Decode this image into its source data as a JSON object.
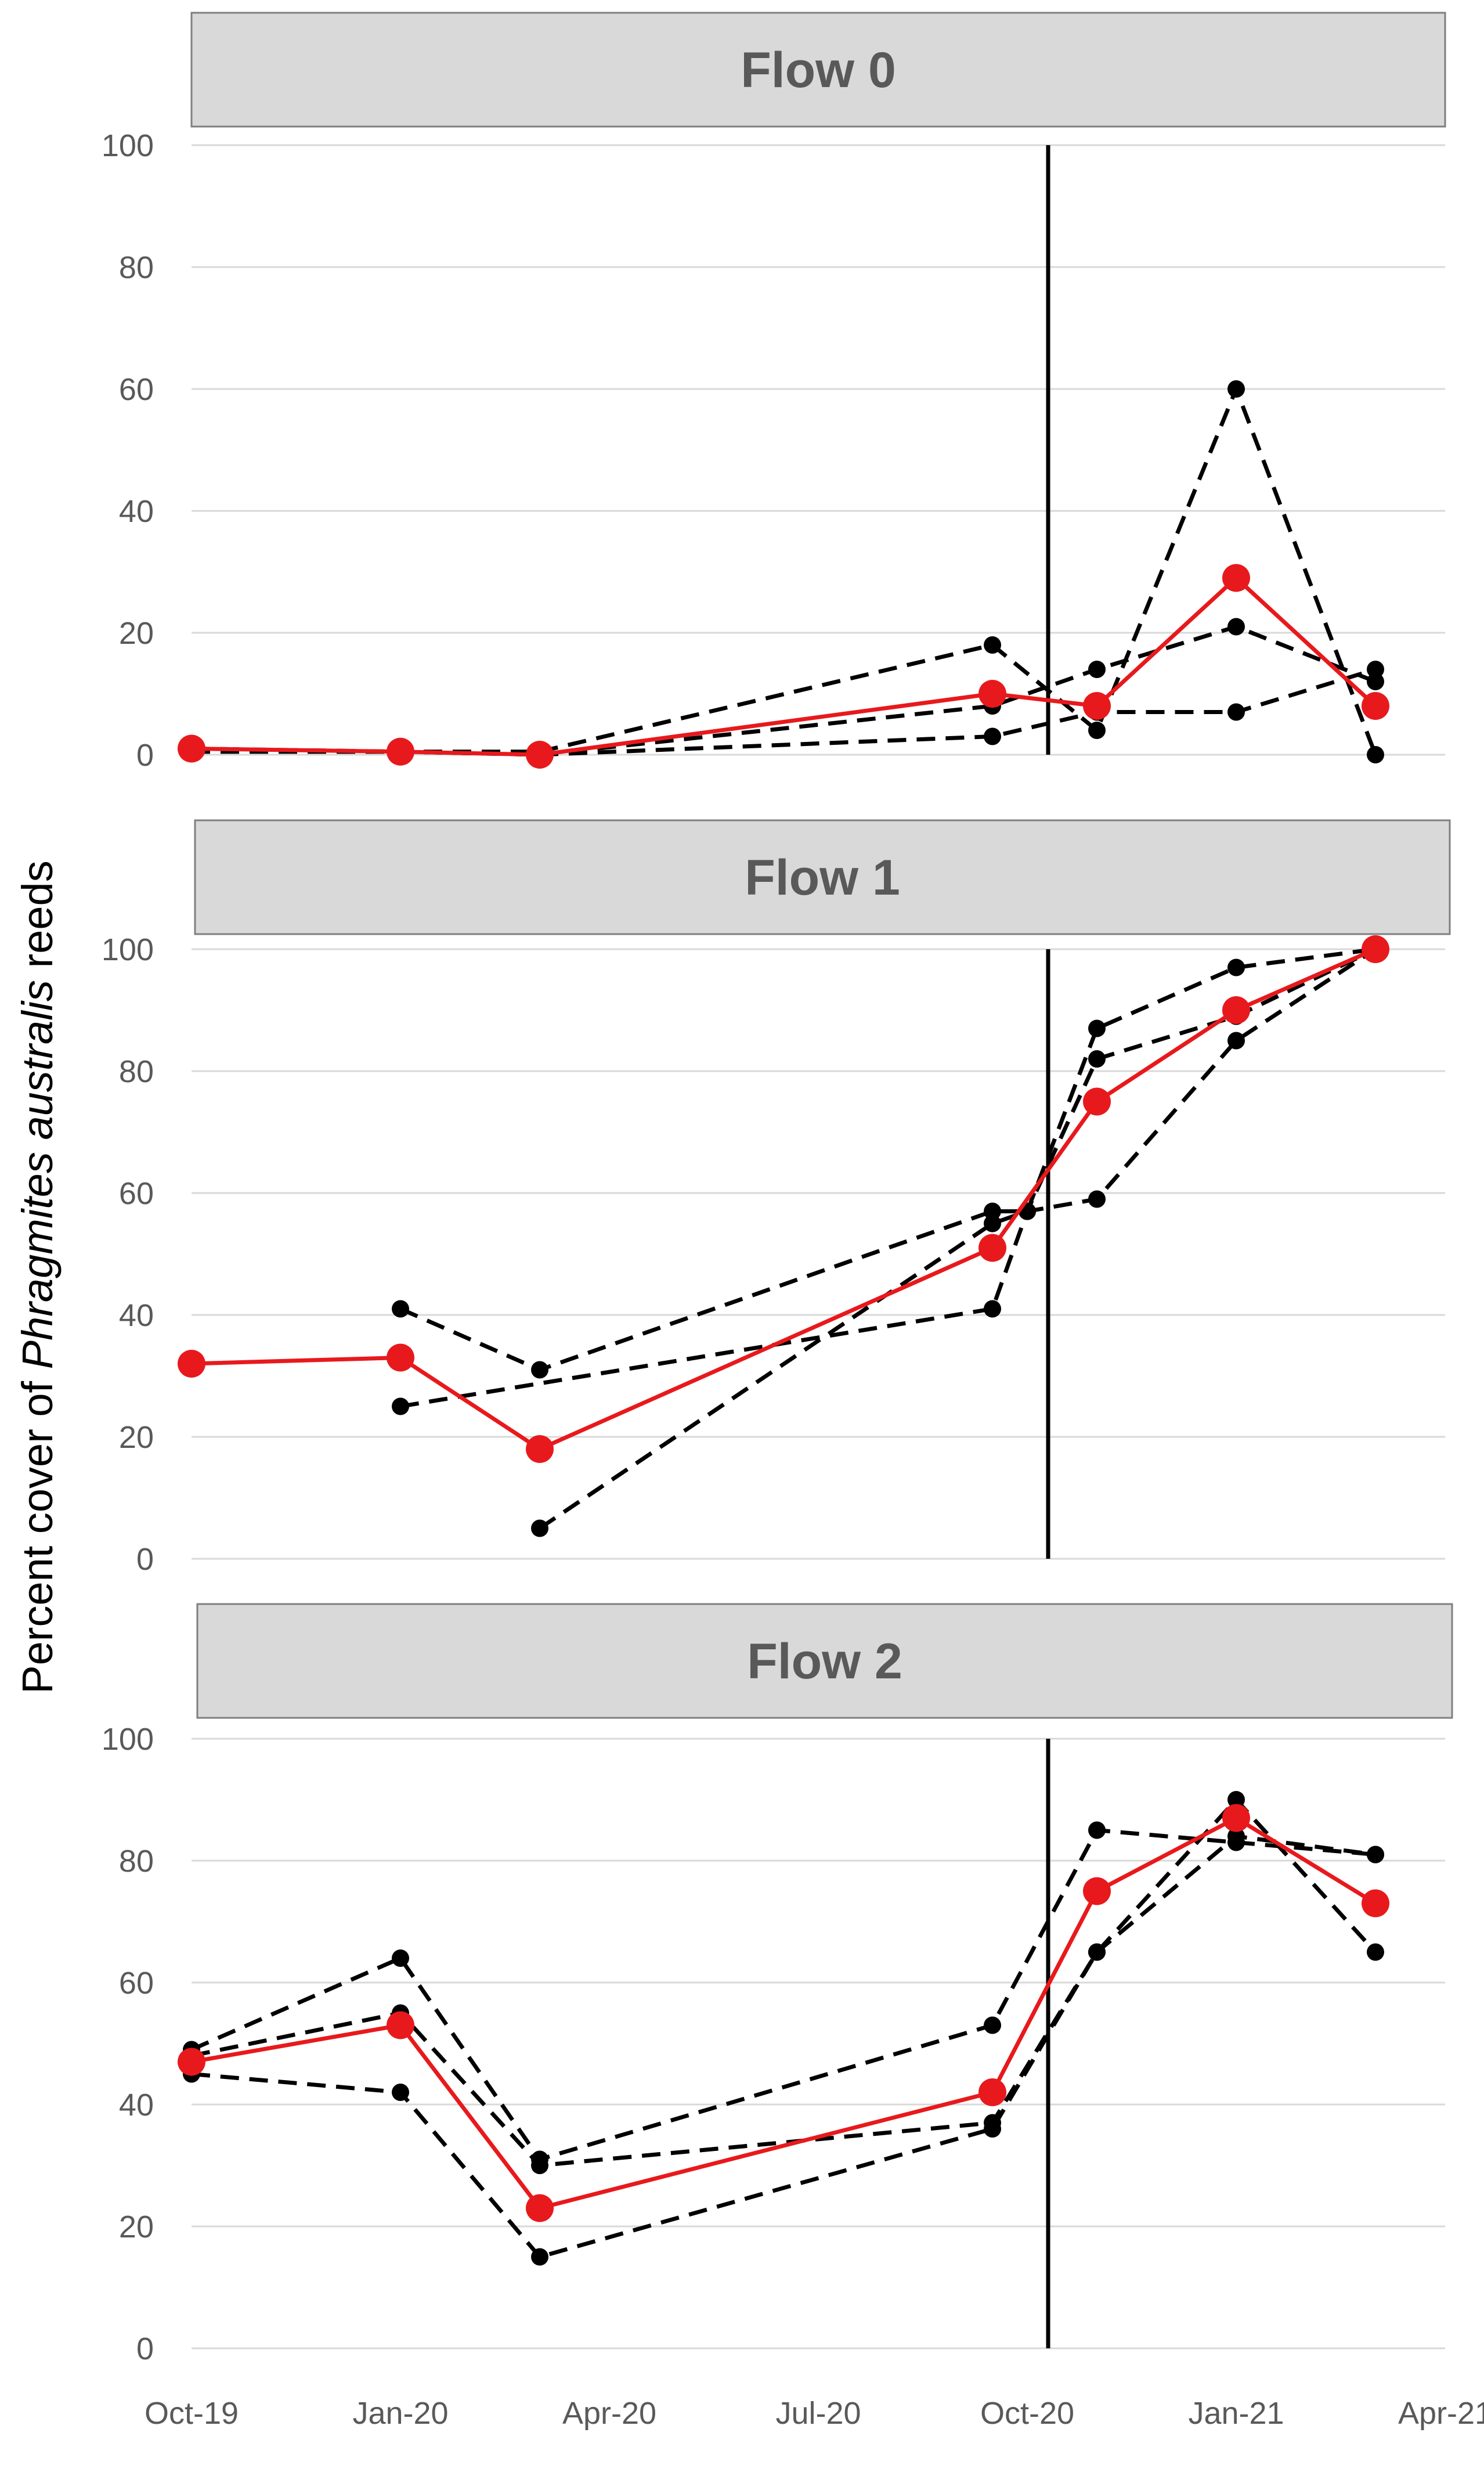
{
  "chart_data": {
    "type": "line",
    "ylabel": {
      "prefix": "Percent cover of ",
      "italic": "Phragmites australis",
      "suffix": " reeds"
    },
    "x_ticks": [
      "Oct-19",
      "Jan-20",
      "Apr-20",
      "Jul-20",
      "Oct-20",
      "Jan-21",
      "Apr-21"
    ],
    "x_range_months": [
      0,
      18
    ],
    "y_range": [
      0,
      100
    ],
    "y_ticks": [
      0,
      20,
      40,
      60,
      80,
      100
    ],
    "grid": true,
    "event_line_month": 12.3,
    "colors": {
      "mean": "#e8191c",
      "replicate": "#000000",
      "grid": "#d9d9d9",
      "title_box": "#d9d9d9"
    },
    "panels": [
      {
        "title": "Flow 0",
        "series": [
          {
            "name": "mean",
            "months": [
              0,
              3,
              5,
              11.5,
              13,
              15,
              17
            ],
            "values": [
              1,
              0.5,
              0,
              10,
              8,
              29,
              8
            ]
          },
          {
            "name": "replicate-1",
            "months": [
              0,
              3,
              5,
              11.5,
              13,
              15,
              17
            ],
            "values": [
              0.5,
              0.5,
              0.5,
              18,
              4,
              60,
              0
            ]
          },
          {
            "name": "replicate-2",
            "months": [
              0,
              3,
              5,
              11.5,
              13,
              15,
              17
            ],
            "values": [
              1,
              0.5,
              0,
              8,
              14,
              21,
              12
            ]
          },
          {
            "name": "replicate-3",
            "months": [
              0,
              3,
              5,
              11.5,
              13,
              15,
              17
            ],
            "values": [
              0.5,
              0.5,
              0,
              3,
              7,
              7,
              14
            ]
          }
        ]
      },
      {
        "title": "Flow 1",
        "series": [
          {
            "name": "mean",
            "months": [
              0,
              3,
              5,
              11.5,
              13,
              15,
              17
            ],
            "values": [
              32,
              33,
              18,
              51,
              75,
              90,
              100
            ]
          },
          {
            "name": "replicate-1",
            "months": [
              3,
              5,
              11.5,
              12,
              13,
              15,
              17
            ],
            "values": [
              41,
              31,
              57,
              57,
              87,
              97,
              100
            ]
          },
          {
            "name": "replicate-2",
            "months": [
              5,
              11.5,
              12,
              13,
              15,
              17
            ],
            "values": [
              5,
              55,
              57,
              59,
              85,
              100
            ]
          },
          {
            "name": "replicate-3",
            "months": [
              3,
              11.5,
              12,
              13,
              15,
              17
            ],
            "values": [
              25,
              41,
              57,
              82,
              89,
              100
            ]
          }
        ]
      },
      {
        "title": "Flow 2",
        "series": [
          {
            "name": "mean",
            "months": [
              0,
              3,
              5,
              11.5,
              13,
              15,
              17
            ],
            "values": [
              47,
              53,
              23,
              42,
              75,
              87,
              73
            ]
          },
          {
            "name": "replicate-1",
            "months": [
              0,
              3,
              5,
              11.5,
              13,
              15,
              17
            ],
            "values": [
              49,
              64,
              31,
              53,
              85,
              83,
              81
            ]
          },
          {
            "name": "replicate-2",
            "months": [
              0,
              3,
              5,
              11.5,
              13,
              15,
              17
            ],
            "values": [
              45,
              42,
              15,
              36,
              65,
              90,
              65
            ]
          },
          {
            "name": "replicate-3",
            "months": [
              0,
              3,
              5,
              11.5,
              13,
              15,
              17
            ],
            "values": [
              48,
              55,
              30,
              37,
              65,
              84,
              81
            ]
          }
        ]
      }
    ]
  }
}
